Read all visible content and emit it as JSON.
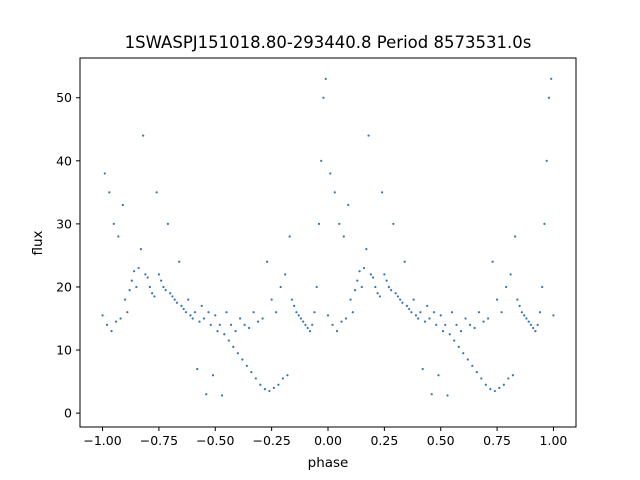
{
  "chart_data": {
    "type": "scatter",
    "title": "1SWASPJ151018.80-293440.8 Period 8573531.0s",
    "xlabel": "phase",
    "ylabel": "flux",
    "xlim": [
      -1.1,
      1.1
    ],
    "ylim": [
      -2.2,
      56.3
    ],
    "x_ticks": [
      -1.0,
      -0.75,
      -0.5,
      -0.25,
      0.0,
      0.25,
      0.5,
      0.75,
      1.0
    ],
    "x_tick_labels": [
      "−1.00",
      "−0.75",
      "−0.50",
      "−0.25",
      "0.00",
      "0.25",
      "0.50",
      "0.75",
      "1.00"
    ],
    "y_ticks": [
      0,
      10,
      20,
      30,
      40,
      50
    ],
    "y_tick_labels": [
      "0",
      "10",
      "20",
      "30",
      "40",
      "50"
    ],
    "grid": false,
    "series": [
      {
        "color": "#2f75b5",
        "marker": "dot",
        "x": [
          -1.0,
          -0.99,
          -0.98,
          -0.97,
          -0.96,
          -0.95,
          -0.94,
          -0.93,
          -0.92,
          -0.91,
          -0.9,
          -0.89,
          -0.88,
          -0.87,
          -0.86,
          -0.85,
          -0.84,
          -0.83,
          -0.82,
          -0.81,
          -0.8,
          -0.79,
          -0.78,
          -0.77,
          -0.76,
          -0.75,
          -0.74,
          -0.73,
          -0.72,
          -0.71,
          -0.7,
          -0.69,
          -0.68,
          -0.67,
          -0.66,
          -0.65,
          -0.64,
          -0.63,
          -0.62,
          -0.61,
          -0.6,
          -0.59,
          -0.58,
          -0.57,
          -0.56,
          -0.55,
          -0.54,
          -0.53,
          -0.52,
          -0.51,
          -0.5,
          -0.49,
          -0.48,
          -0.47,
          -0.46,
          -0.45,
          -0.44,
          -0.43,
          -0.42,
          -0.41,
          -0.4,
          -0.39,
          -0.38,
          -0.37,
          -0.36,
          -0.35,
          -0.34,
          -0.33,
          -0.32,
          -0.31,
          -0.3,
          -0.29,
          -0.28,
          -0.27,
          -0.26,
          -0.25,
          -0.24,
          -0.23,
          -0.22,
          -0.21,
          -0.2,
          -0.19,
          -0.18,
          -0.17,
          -0.16,
          -0.15,
          -0.14,
          -0.13,
          -0.12,
          -0.11,
          -0.1,
          -0.09,
          -0.08,
          -0.07,
          -0.06,
          -0.05,
          -0.04,
          -0.03,
          -0.02,
          -0.01,
          0.0,
          0.01,
          0.02,
          0.03,
          0.04,
          0.05,
          0.06,
          0.07,
          0.08,
          0.09,
          0.1,
          0.11,
          0.12,
          0.13,
          0.14,
          0.15,
          0.16,
          0.17,
          0.18,
          0.19,
          0.2,
          0.21,
          0.22,
          0.23,
          0.24,
          0.25,
          0.26,
          0.27,
          0.28,
          0.29,
          0.3,
          0.31,
          0.32,
          0.33,
          0.34,
          0.35,
          0.36,
          0.37,
          0.38,
          0.39,
          0.4,
          0.41,
          0.42,
          0.43,
          0.44,
          0.45,
          0.46,
          0.47,
          0.48,
          0.49,
          0.5,
          0.51,
          0.52,
          0.53,
          0.54,
          0.55,
          0.56,
          0.57,
          0.58,
          0.59,
          0.6,
          0.61,
          0.62,
          0.63,
          0.64,
          0.65,
          0.66,
          0.67,
          0.68,
          0.69,
          0.7,
          0.71,
          0.72,
          0.73,
          0.74,
          0.75,
          0.76,
          0.77,
          0.78,
          0.79,
          0.8,
          0.81,
          0.82,
          0.83,
          0.84,
          0.85,
          0.86,
          0.87,
          0.88,
          0.89,
          0.9,
          0.91,
          0.92,
          0.93,
          0.94,
          0.95,
          0.96,
          0.97,
          0.98,
          0.99,
          1.0
        ],
        "y": [
          15.5,
          38.0,
          14.0,
          35.0,
          13.0,
          30.0,
          14.5,
          28.0,
          15.0,
          33.0,
          18.0,
          16.0,
          19.5,
          21.0,
          22.5,
          20.0,
          23.0,
          26.0,
          44.0,
          22.0,
          21.5,
          20.0,
          19.0,
          18.5,
          35.0,
          22.0,
          21.0,
          20.0,
          19.5,
          30.0,
          19.0,
          18.5,
          18.0,
          17.5,
          24.0,
          17.0,
          16.5,
          16.0,
          18.0,
          15.5,
          15.0,
          16.0,
          7.0,
          14.5,
          17.0,
          15.0,
          3.0,
          16.0,
          14.0,
          6.0,
          15.5,
          13.0,
          14.0,
          2.8,
          12.5,
          16.0,
          11.5,
          14.0,
          10.5,
          13.0,
          9.5,
          15.0,
          8.5,
          14.0,
          7.5,
          13.5,
          6.5,
          16.0,
          5.5,
          14.5,
          4.5,
          15.0,
          3.8,
          24.0,
          3.5,
          18.0,
          4.0,
          16.0,
          4.5,
          20.0,
          5.5,
          22.0,
          6.0,
          28.0,
          18.0,
          17.0,
          16.0,
          15.5,
          15.0,
          14.5,
          14.0,
          13.5,
          13.0,
          14.0,
          16.0,
          20.0,
          30.0,
          40.0,
          50.0,
          53.0,
          15.5,
          38.0,
          14.0,
          35.0,
          13.0,
          30.0,
          14.5,
          28.0,
          15.0,
          33.0,
          18.0,
          16.0,
          19.5,
          21.0,
          22.5,
          20.0,
          23.0,
          26.0,
          44.0,
          22.0,
          21.5,
          20.0,
          19.0,
          18.5,
          35.0,
          22.0,
          21.0,
          20.0,
          19.5,
          30.0,
          19.0,
          18.5,
          18.0,
          17.5,
          24.0,
          17.0,
          16.5,
          16.0,
          18.0,
          15.5,
          15.0,
          16.0,
          7.0,
          14.5,
          17.0,
          15.0,
          3.0,
          16.0,
          14.0,
          6.0,
          15.5,
          13.0,
          14.0,
          2.8,
          12.5,
          16.0,
          11.5,
          14.0,
          10.5,
          13.0,
          9.5,
          15.0,
          8.5,
          14.0,
          7.5,
          13.5,
          6.5,
          16.0,
          5.5,
          14.5,
          4.5,
          15.0,
          3.8,
          24.0,
          3.5,
          18.0,
          4.0,
          16.0,
          4.5,
          20.0,
          5.5,
          22.0,
          6.0,
          28.0,
          18.0,
          17.0,
          16.0,
          15.5,
          15.0,
          14.5,
          14.0,
          13.5,
          13.0,
          14.0,
          16.0,
          20.0,
          30.0,
          40.0,
          50.0,
          53.0,
          15.5
        ]
      }
    ]
  }
}
